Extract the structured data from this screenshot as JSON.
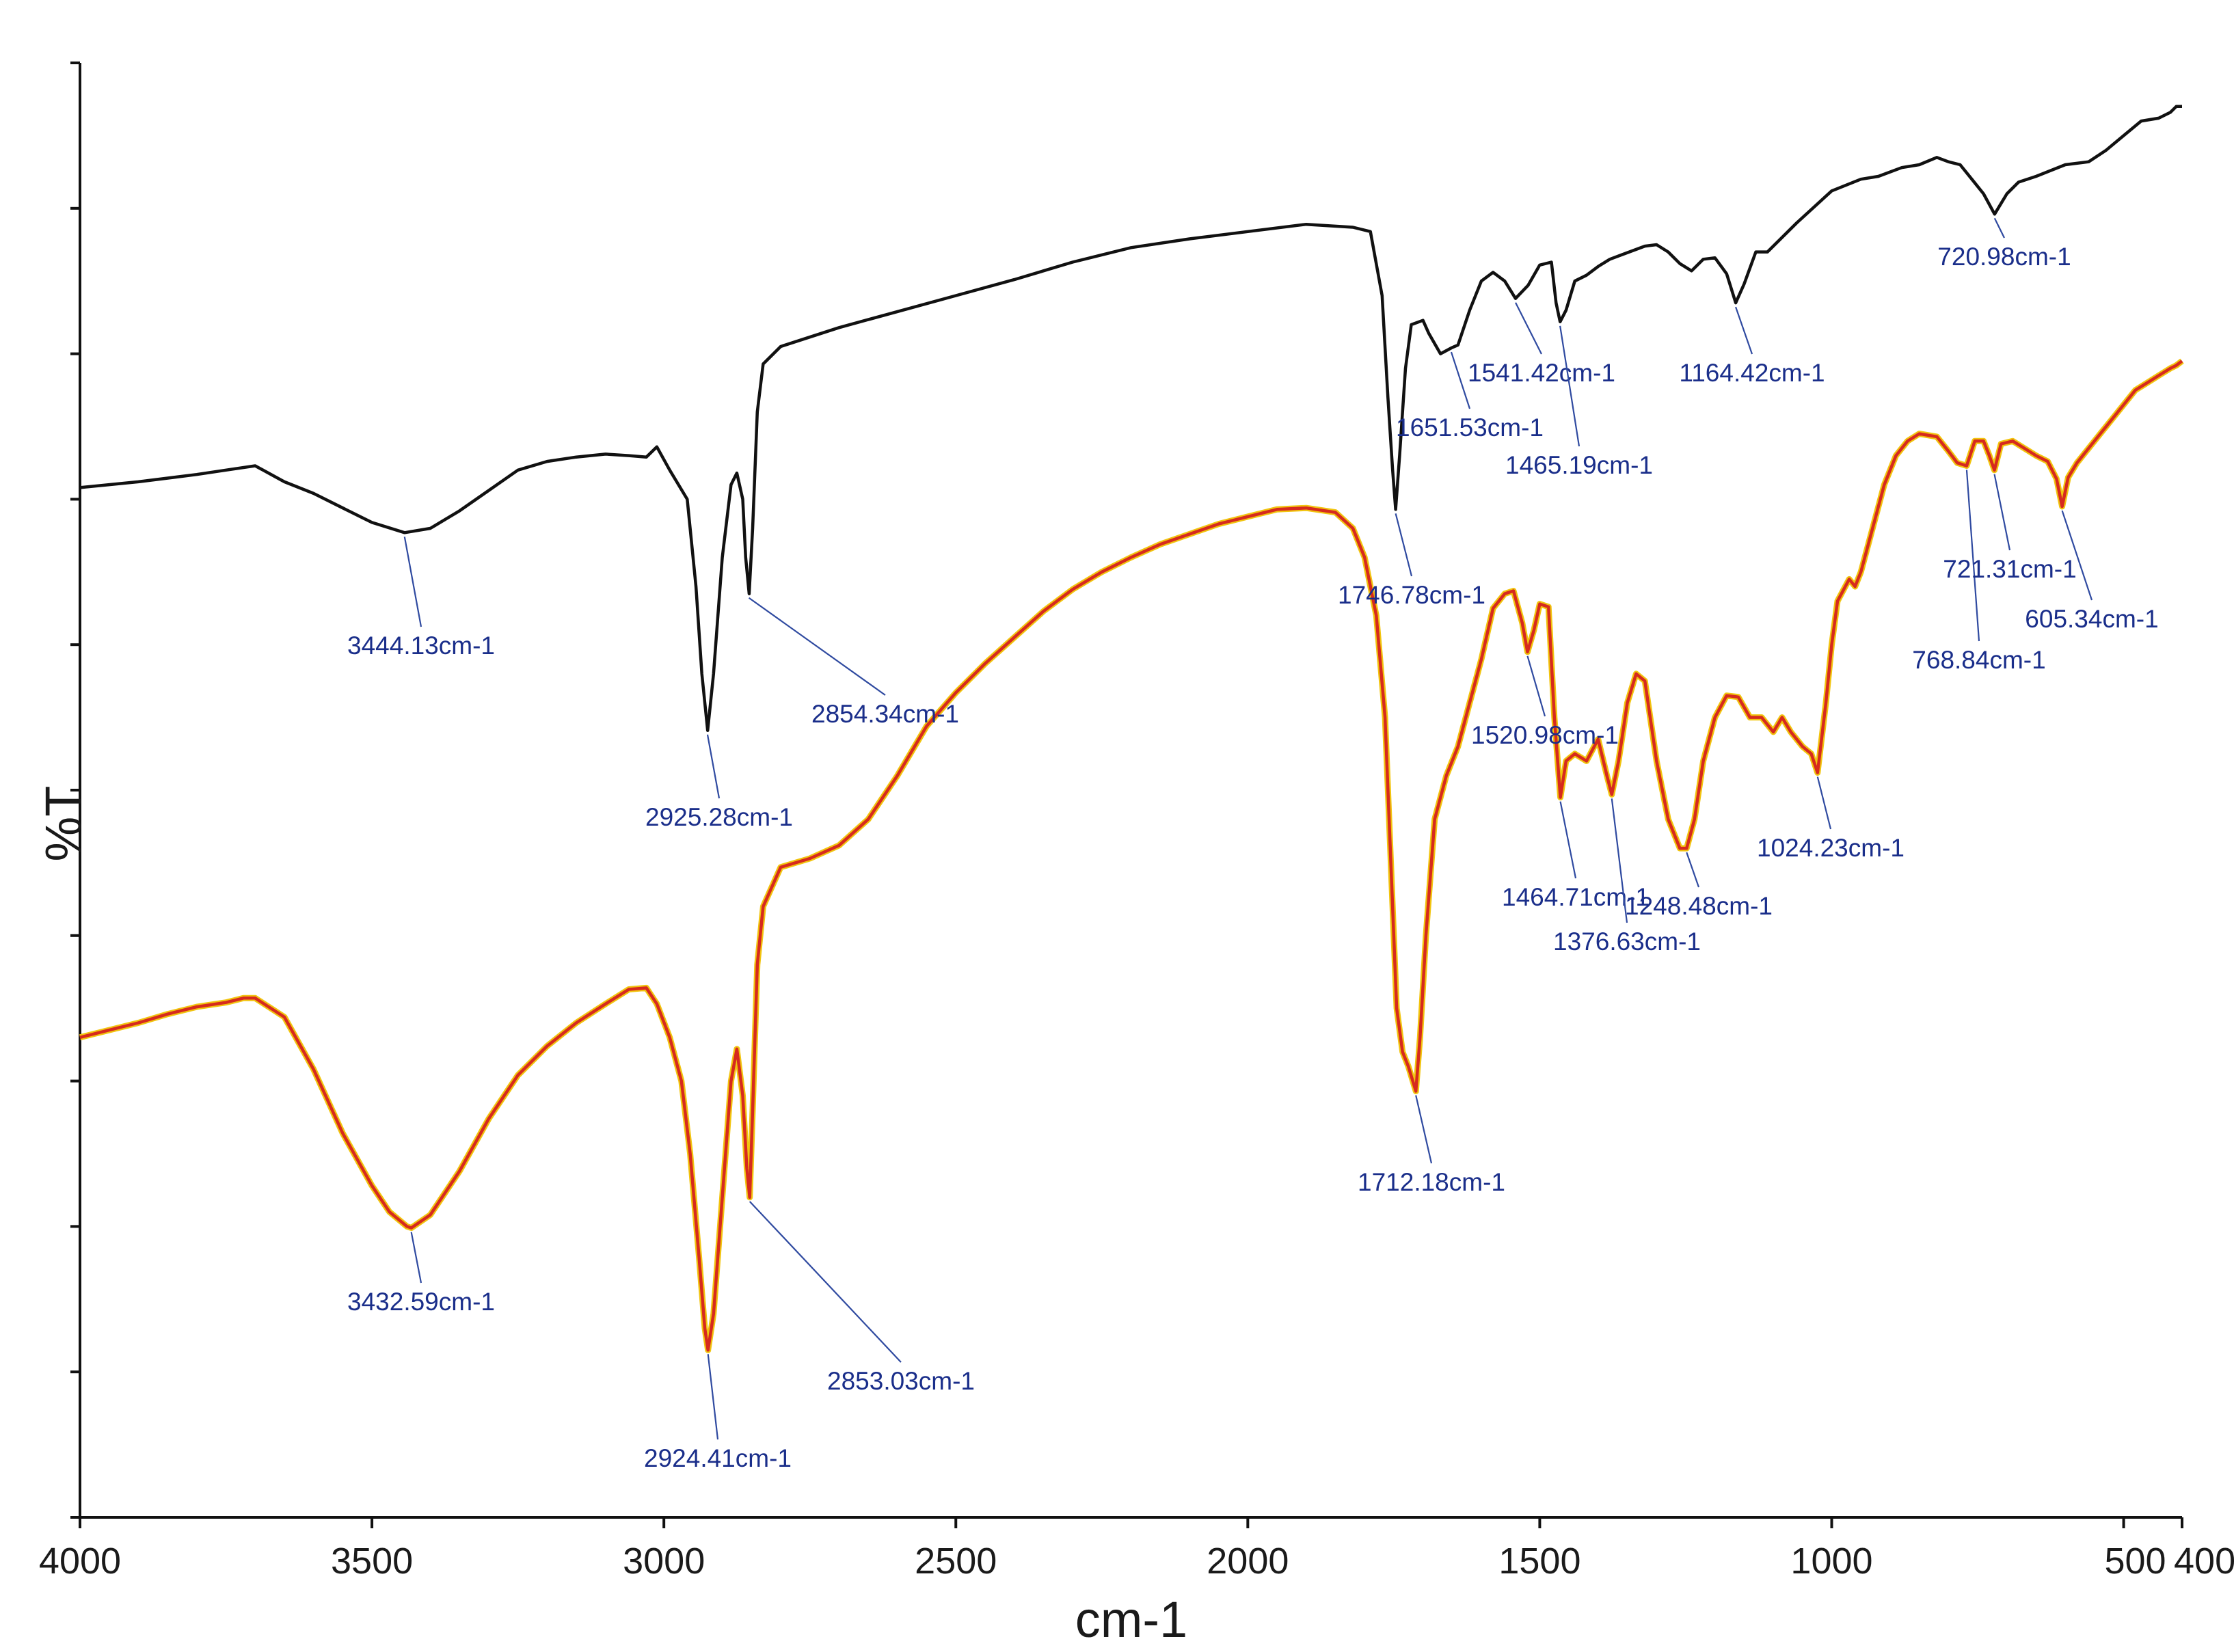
{
  "chart_data": {
    "type": "line",
    "title": "",
    "xlabel": "cm-1",
    "ylabel": "%T",
    "xlim": [
      4000,
      400
    ],
    "ylim": [
      0,
      100
    ],
    "x_ticks": [
      {
        "value": 4000,
        "label": "4000"
      },
      {
        "value": 3500,
        "label": "3500"
      },
      {
        "value": 3000,
        "label": "3000"
      },
      {
        "value": 2500,
        "label": "2500"
      },
      {
        "value": 2000,
        "label": "2000"
      },
      {
        "value": 1500,
        "label": "1500"
      },
      {
        "value": 1000,
        "label": "1000"
      },
      {
        "value": 500,
        "label": "500"
      },
      {
        "value": 400,
        "label": "400"
      }
    ],
    "y_tick_count": 11,
    "colors": {
      "axis": "#111111",
      "series_top": "#111111",
      "series_bottom": "#d62a1e",
      "series_bottom_halo": "#f1c40f",
      "label_text": "#1a2e8a",
      "leader": "#2f4aa0"
    },
    "series": [
      {
        "name": "top",
        "color": "#111111",
        "points": [
          [
            4000,
            70.8
          ],
          [
            3950,
            71.0
          ],
          [
            3900,
            71.2
          ],
          [
            3800,
            71.7
          ],
          [
            3750,
            72.0
          ],
          [
            3700,
            72.3
          ],
          [
            3650,
            71.2
          ],
          [
            3600,
            70.4
          ],
          [
            3550,
            69.4
          ],
          [
            3500,
            68.4
          ],
          [
            3444,
            67.7
          ],
          [
            3400,
            68.0
          ],
          [
            3350,
            69.2
          ],
          [
            3300,
            70.6
          ],
          [
            3250,
            72.0
          ],
          [
            3200,
            72.6
          ],
          [
            3150,
            72.9
          ],
          [
            3100,
            73.1
          ],
          [
            3060,
            73.0
          ],
          [
            3030,
            72.9
          ],
          [
            3012,
            73.6
          ],
          [
            2990,
            72.0
          ],
          [
            2960,
            70.0
          ],
          [
            2945,
            64.0
          ],
          [
            2935,
            58.0
          ],
          [
            2925,
            54.1
          ],
          [
            2915,
            58.0
          ],
          [
            2900,
            66.0
          ],
          [
            2885,
            71.0
          ],
          [
            2875,
            71.8
          ],
          [
            2865,
            70.0
          ],
          [
            2860,
            66.0
          ],
          [
            2854,
            63.5
          ],
          [
            2848,
            68.0
          ],
          [
            2840,
            76.0
          ],
          [
            2830,
            79.3
          ],
          [
            2800,
            80.5
          ],
          [
            2700,
            81.8
          ],
          [
            2600,
            82.9
          ],
          [
            2500,
            84.0
          ],
          [
            2400,
            85.1
          ],
          [
            2300,
            86.3
          ],
          [
            2200,
            87.3
          ],
          [
            2100,
            87.9
          ],
          [
            2000,
            88.4
          ],
          [
            1900,
            88.9
          ],
          [
            1820,
            88.7
          ],
          [
            1790,
            88.4
          ],
          [
            1770,
            84.0
          ],
          [
            1760,
            77.0
          ],
          [
            1752,
            72.0
          ],
          [
            1746.78,
            69.3
          ],
          [
            1740,
            73.0
          ],
          [
            1730,
            79.0
          ],
          [
            1720,
            82.0
          ],
          [
            1700,
            82.3
          ],
          [
            1690,
            81.4
          ],
          [
            1670,
            80.0
          ],
          [
            1651.53,
            80.4
          ],
          [
            1640,
            80.6
          ],
          [
            1620,
            83.0
          ],
          [
            1600,
            85.0
          ],
          [
            1580,
            85.6
          ],
          [
            1560,
            85.0
          ],
          [
            1541.42,
            83.8
          ],
          [
            1520,
            84.7
          ],
          [
            1500,
            86.1
          ],
          [
            1480,
            86.3
          ],
          [
            1472,
            83.5
          ],
          [
            1465.19,
            82.2
          ],
          [
            1455,
            83.0
          ],
          [
            1440,
            85.0
          ],
          [
            1420,
            85.4
          ],
          [
            1400,
            86.0
          ],
          [
            1380,
            86.5
          ],
          [
            1360,
            86.8
          ],
          [
            1320,
            87.4
          ],
          [
            1300,
            87.5
          ],
          [
            1280,
            87.0
          ],
          [
            1260,
            86.2
          ],
          [
            1240,
            85.7
          ],
          [
            1220,
            86.5
          ],
          [
            1200,
            86.6
          ],
          [
            1180,
            85.5
          ],
          [
            1164.42,
            83.5
          ],
          [
            1150,
            84.8
          ],
          [
            1130,
            87.0
          ],
          [
            1110,
            87.0
          ],
          [
            1090,
            87.8
          ],
          [
            1060,
            89.0
          ],
          [
            1000,
            91.2
          ],
          [
            950,
            92.0
          ],
          [
            920,
            92.2
          ],
          [
            880,
            92.8
          ],
          [
            850,
            93.0
          ],
          [
            820,
            93.5
          ],
          [
            800,
            93.2
          ],
          [
            780,
            93.0
          ],
          [
            760,
            92.0
          ],
          [
            740,
            91.0
          ],
          [
            720.98,
            89.6
          ],
          [
            700,
            91.0
          ],
          [
            680,
            91.8
          ],
          [
            650,
            92.2
          ],
          [
            600,
            93.0
          ],
          [
            560,
            93.2
          ],
          [
            530,
            94.0
          ],
          [
            500,
            95.0
          ],
          [
            470,
            96.0
          ],
          [
            440,
            96.2
          ],
          [
            420,
            96.6
          ],
          [
            410,
            97.0
          ],
          [
            400,
            97.0
          ]
        ]
      },
      {
        "name": "bottom",
        "color": "#d62a1e",
        "points": [
          [
            4000,
            33.0
          ],
          [
            3950,
            33.5
          ],
          [
            3900,
            34.0
          ],
          [
            3850,
            34.6
          ],
          [
            3800,
            35.1
          ],
          [
            3750,
            35.4
          ],
          [
            3720,
            35.7
          ],
          [
            3700,
            35.7
          ],
          [
            3650,
            34.4
          ],
          [
            3600,
            30.8
          ],
          [
            3550,
            26.4
          ],
          [
            3500,
            22.8
          ],
          [
            3470,
            21.0
          ],
          [
            3440,
            20.0
          ],
          [
            3432.59,
            19.9
          ],
          [
            3400,
            20.8
          ],
          [
            3350,
            23.8
          ],
          [
            3300,
            27.4
          ],
          [
            3250,
            30.4
          ],
          [
            3200,
            32.4
          ],
          [
            3150,
            34.0
          ],
          [
            3100,
            35.3
          ],
          [
            3060,
            36.3
          ],
          [
            3030,
            36.4
          ],
          [
            3012,
            35.3
          ],
          [
            2990,
            33.0
          ],
          [
            2970,
            30.0
          ],
          [
            2955,
            25.0
          ],
          [
            2940,
            18.0
          ],
          [
            2930,
            13.0
          ],
          [
            2924.41,
            11.5
          ],
          [
            2915,
            14.0
          ],
          [
            2900,
            22.0
          ],
          [
            2885,
            30.0
          ],
          [
            2875,
            32.2
          ],
          [
            2865,
            29.0
          ],
          [
            2858,
            24.0
          ],
          [
            2853.03,
            22.0
          ],
          [
            2848,
            28.0
          ],
          [
            2840,
            38.0
          ],
          [
            2830,
            42.0
          ],
          [
            2800,
            44.7
          ],
          [
            2750,
            45.3
          ],
          [
            2700,
            46.2
          ],
          [
            2650,
            48.0
          ],
          [
            2600,
            51.0
          ],
          [
            2550,
            54.4
          ],
          [
            2500,
            56.7
          ],
          [
            2450,
            58.7
          ],
          [
            2400,
            60.5
          ],
          [
            2350,
            62.3
          ],
          [
            2300,
            63.8
          ],
          [
            2250,
            65.0
          ],
          [
            2200,
            66.0
          ],
          [
            2150,
            66.9
          ],
          [
            2100,
            67.6
          ],
          [
            2050,
            68.3
          ],
          [
            2000,
            68.8
          ],
          [
            1950,
            69.3
          ],
          [
            1900,
            69.4
          ],
          [
            1850,
            69.1
          ],
          [
            1820,
            68.0
          ],
          [
            1800,
            66.0
          ],
          [
            1780,
            62.0
          ],
          [
            1765,
            55.0
          ],
          [
            1755,
            45.0
          ],
          [
            1745,
            35.0
          ],
          [
            1735,
            32.0
          ],
          [
            1725,
            31.0
          ],
          [
            1712.18,
            29.3
          ],
          [
            1705,
            33.0
          ],
          [
            1695,
            40.0
          ],
          [
            1680,
            48.0
          ],
          [
            1660,
            51.0
          ],
          [
            1640,
            53.0
          ],
          [
            1620,
            56.0
          ],
          [
            1600,
            59.0
          ],
          [
            1580,
            62.5
          ],
          [
            1560,
            63.5
          ],
          [
            1545,
            63.7
          ],
          [
            1530,
            61.5
          ],
          [
            1520.98,
            59.5
          ],
          [
            1510,
            61.0
          ],
          [
            1500,
            62.8
          ],
          [
            1485,
            62.6
          ],
          [
            1475,
            55.0
          ],
          [
            1464.71,
            49.5
          ],
          [
            1455,
            52.0
          ],
          [
            1440,
            52.5
          ],
          [
            1420,
            52.0
          ],
          [
            1400,
            53.5
          ],
          [
            1385,
            51.0
          ],
          [
            1376.63,
            49.7
          ],
          [
            1365,
            52.0
          ],
          [
            1350,
            56.0
          ],
          [
            1335,
            58.0
          ],
          [
            1320,
            57.5
          ],
          [
            1300,
            52.0
          ],
          [
            1280,
            48.0
          ],
          [
            1260,
            46.0
          ],
          [
            1248.48,
            46.0
          ],
          [
            1235,
            48.0
          ],
          [
            1220,
            52.0
          ],
          [
            1200,
            55.0
          ],
          [
            1180,
            56.5
          ],
          [
            1160,
            56.4
          ],
          [
            1140,
            55.0
          ],
          [
            1120,
            55.0
          ],
          [
            1100,
            54.0
          ],
          [
            1085,
            55.0
          ],
          [
            1070,
            54.0
          ],
          [
            1050,
            53.0
          ],
          [
            1035,
            52.5
          ],
          [
            1024.23,
            51.2
          ],
          [
            1010,
            56.0
          ],
          [
            1000,
            60.0
          ],
          [
            990,
            63.0
          ],
          [
            970,
            64.5
          ],
          [
            960,
            64.0
          ],
          [
            950,
            65.0
          ],
          [
            930,
            68.0
          ],
          [
            910,
            71.0
          ],
          [
            890,
            73.0
          ],
          [
            870,
            74.0
          ],
          [
            850,
            74.5
          ],
          [
            820,
            74.3
          ],
          [
            800,
            73.3
          ],
          [
            785,
            72.5
          ],
          [
            768.84,
            72.3
          ],
          [
            755,
            74.0
          ],
          [
            740,
            74.0
          ],
          [
            730,
            73.0
          ],
          [
            721.31,
            72.0
          ],
          [
            710,
            73.8
          ],
          [
            690,
            74.0
          ],
          [
            670,
            73.5
          ],
          [
            650,
            73.0
          ],
          [
            630,
            72.6
          ],
          [
            615,
            71.4
          ],
          [
            605.34,
            69.5
          ],
          [
            595,
            71.5
          ],
          [
            580,
            72.5
          ],
          [
            560,
            73.5
          ],
          [
            540,
            74.5
          ],
          [
            520,
            75.5
          ],
          [
            500,
            76.5
          ],
          [
            480,
            77.5
          ],
          [
            460,
            78.0
          ],
          [
            440,
            78.5
          ],
          [
            420,
            79.0
          ],
          [
            410,
            79.2
          ],
          [
            400,
            79.5
          ]
        ]
      }
    ],
    "peak_labels": [
      {
        "series": "top",
        "x": 3444.13,
        "y": 67.7,
        "text": "3444.13cm-1"
      },
      {
        "series": "top",
        "x": 2925.28,
        "y": 54.1,
        "text": "2925.28cm-1"
      },
      {
        "series": "top",
        "x": 2854.34,
        "y": 63.5,
        "text": "2854.34cm-1"
      },
      {
        "series": "top",
        "x": 1746.78,
        "y": 69.3,
        "text": "1746.78cm-1"
      },
      {
        "series": "top",
        "x": 1651.53,
        "y": 80.4,
        "text": "1651.53cm-1"
      },
      {
        "series": "top",
        "x": 1541.42,
        "y": 83.8,
        "text": "1541.42cm-1"
      },
      {
        "series": "top",
        "x": 1465.19,
        "y": 82.2,
        "text": "1465.19cm-1"
      },
      {
        "series": "top",
        "x": 1164.42,
        "y": 83.5,
        "text": "1164.42cm-1"
      },
      {
        "series": "top",
        "x": 720.98,
        "y": 89.6,
        "text": "720.98cm-1"
      },
      {
        "series": "bottom",
        "x": 3432.59,
        "y": 19.9,
        "text": "3432.59cm-1"
      },
      {
        "series": "bottom",
        "x": 2924.41,
        "y": 11.5,
        "text": "2924.41cm-1"
      },
      {
        "series": "bottom",
        "x": 2853.03,
        "y": 22.0,
        "text": "2853.03cm-1"
      },
      {
        "series": "bottom",
        "x": 1712.18,
        "y": 29.3,
        "text": "1712.18cm-1"
      },
      {
        "series": "bottom",
        "x": 1520.98,
        "y": 59.5,
        "text": "1520.98cm-1"
      },
      {
        "series": "bottom",
        "x": 1464.71,
        "y": 49.5,
        "text": "1464.71cm-1"
      },
      {
        "series": "bottom",
        "x": 1376.63,
        "y": 49.7,
        "text": "1376.63cm-1"
      },
      {
        "series": "bottom",
        "x": 1248.48,
        "y": 46.0,
        "text": "1248.48cm-1"
      },
      {
        "series": "bottom",
        "x": 1024.23,
        "y": 51.2,
        "text": "1024.23cm-1"
      },
      {
        "series": "bottom",
        "x": 768.84,
        "y": 72.3,
        "text": "768.84cm-1"
      },
      {
        "series": "bottom",
        "x": 721.31,
        "y": 72.0,
        "text": "721.31cm-1"
      },
      {
        "series": "bottom",
        "x": 605.34,
        "y": 69.5,
        "text": "605.34cm-1"
      }
    ]
  }
}
